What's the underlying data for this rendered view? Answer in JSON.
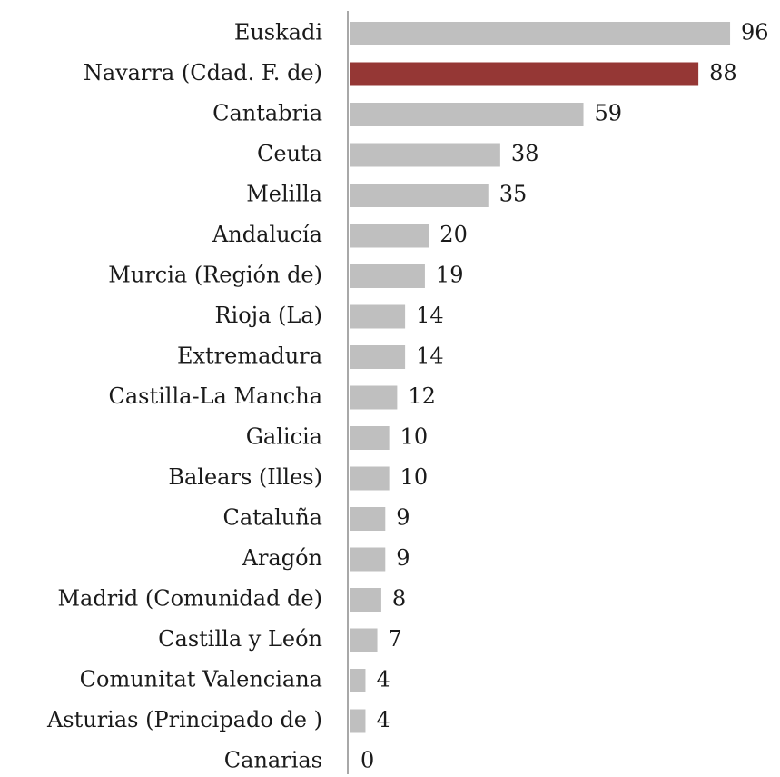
{
  "chart_data": {
    "type": "hbar",
    "categories": [
      "Euskadi",
      "Navarra (Cdad. F. de)",
      "Cantabria",
      "Ceuta",
      "Melilla",
      "Andalucía",
      "Murcia (Región de)",
      "Rioja (La)",
      "Extremadura",
      "Castilla-La Mancha",
      "Galicia",
      "Balears (Illes)",
      "Cataluña",
      "Aragón",
      "Madrid (Comunidad de)",
      "Castilla y León",
      "Comunitat Valenciana",
      "Asturias (Principado de )",
      "Canarias"
    ],
    "values": [
      96,
      88,
      59,
      38,
      35,
      20,
      19,
      14,
      14,
      12,
      10,
      10,
      9,
      9,
      8,
      7,
      4,
      4,
      0
    ],
    "colors": [
      "#bfbfbf",
      "#953735",
      "#bfbfbf",
      "#bfbfbf",
      "#bfbfbf",
      "#bfbfbf",
      "#bfbfbf",
      "#bfbfbf",
      "#bfbfbf",
      "#bfbfbf",
      "#bfbfbf",
      "#bfbfbf",
      "#bfbfbf",
      "#bfbfbf",
      "#bfbfbf",
      "#bfbfbf",
      "#bfbfbf",
      "#bfbfbf",
      "#bfbfbf"
    ]
  }
}
